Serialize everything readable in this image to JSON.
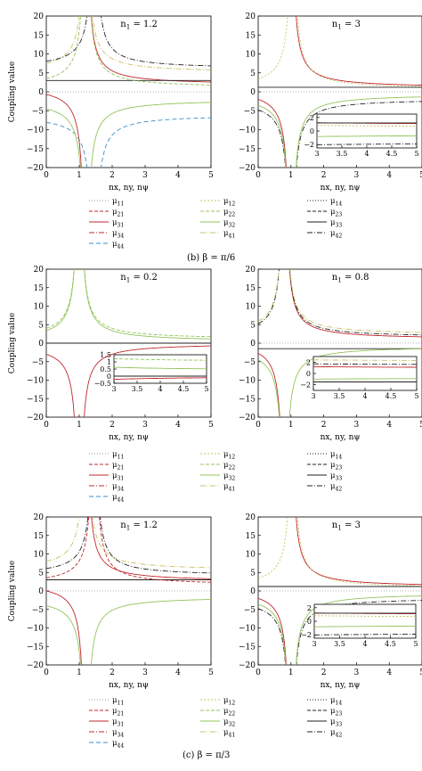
{
  "chart_data": [
    {
      "type": "line",
      "panel": "top-left",
      "title": "n1 = 1.2",
      "xlabel": "nx, ny, nψ",
      "ylabel": "Coupling value",
      "xlim": [
        0,
        5
      ],
      "ylim": [
        -20,
        20
      ],
      "xticks": [
        "0",
        "1",
        "2",
        "3",
        "4",
        "5"
      ],
      "yticks": [
        "20",
        "15",
        "10",
        "5",
        "0",
        "−5",
        "−10",
        "−15",
        "−20"
      ],
      "series": [
        {
          "name": "μ31",
          "asymptote": 1.2,
          "mode": "both",
          "tail": 1.8,
          "color": "#c0282d",
          "dash": ""
        },
        {
          "name": "μ41",
          "asymptote": 1.2,
          "mode": "pos",
          "tail": 5.0,
          "color": "#c8c064",
          "dash": "6 2 1 2"
        },
        {
          "name": "μ42",
          "asymptote": 1.45,
          "mode": "pos",
          "tail": 6.0,
          "color": "#222222",
          "dash": "6 2 1 2"
        },
        {
          "name": "μ44",
          "asymptote": 1.45,
          "mode": "neg",
          "tail": -6.0,
          "color": "#3b8ec8",
          "dash": "5 3"
        },
        {
          "name": "μ32",
          "asymptote": 1.2,
          "mode": "neg",
          "tail": -2.0,
          "color": "#93c45a",
          "dash": ""
        },
        {
          "name": "μ33",
          "asymptote": null,
          "mode": "flat",
          "tail": 3.0,
          "color": "#222222",
          "dash": ""
        },
        {
          "name": "μ22",
          "asymptote": 1.2,
          "mode": "pos",
          "tail": 1.0,
          "color": "#93c45a",
          "dash": "4 2"
        }
      ]
    },
    {
      "type": "line",
      "panel": "top-right",
      "title": "n1 = 3",
      "xlabel": "nx, ny, nψ",
      "ylabel": "",
      "xlim": [
        0,
        5
      ],
      "ylim": [
        -20,
        20
      ],
      "xticks": [
        "0",
        "1",
        "2",
        "3",
        "4",
        "5"
      ],
      "yticks": [
        "20",
        "15",
        "10",
        "5",
        "0",
        "−5",
        "−10",
        "−15",
        "−20"
      ],
      "inset": {
        "xlim": [
          3,
          5
        ],
        "ylim": [
          -2.5,
          2.5
        ],
        "xticks": [
          "3",
          "3.5",
          "4",
          "4.5",
          "5"
        ],
        "yticks": [
          "2",
          "0",
          "−2"
        ]
      },
      "series": [
        {
          "name": "μ31",
          "asymptote": 1.0,
          "mode": "both",
          "tail": 1.0,
          "color": "#c0282d",
          "dash": ""
        },
        {
          "name": "μ33",
          "asymptote": null,
          "mode": "flat",
          "tail": 1.2,
          "color": "#222222",
          "dash": ""
        },
        {
          "name": "μ42",
          "asymptote": 1.0,
          "mode": "neg",
          "tail": -1.8,
          "color": "#222222",
          "dash": "6 2 1 2"
        },
        {
          "name": "μ32",
          "asymptote": 1.0,
          "mode": "neg",
          "tail": -0.6,
          "color": "#93c45a",
          "dash": ""
        },
        {
          "name": "μ12",
          "asymptote": 1.05,
          "mode": "pos",
          "tail": 0.6,
          "color": "#c8c064",
          "dash": "2 2"
        }
      ]
    },
    {
      "type": "line",
      "panel": "middle-left",
      "title": "n1 = 0.2",
      "xlabel": "nx, ny, nψ",
      "ylabel": "Coupling value",
      "xlim": [
        0,
        5
      ],
      "ylim": [
        -20,
        20
      ],
      "xticks": [
        "0",
        "1",
        "2",
        "3",
        "4",
        "5"
      ],
      "yticks": [
        "20",
        "15",
        "10",
        "5",
        "0",
        "−5",
        "−10",
        "−15",
        "−20"
      ],
      "inset": {
        "xlim": [
          3,
          5
        ],
        "ylim": [
          -0.5,
          1.5
        ],
        "xticks": [
          "3",
          "3.5",
          "4",
          "4.5",
          "5"
        ],
        "yticks": [
          "1.5",
          "1",
          "0.5",
          "0",
          "−0.5"
        ]
      },
      "series": [
        {
          "name": "μ22",
          "asymptote": 1.0,
          "mode": "pos",
          "tail": 1.0,
          "color": "#93c45a",
          "dash": "4 2"
        },
        {
          "name": "μ32",
          "asymptote": 1.0,
          "mode": "pos",
          "tail": 0.4,
          "color": "#93c45a",
          "dash": ""
        },
        {
          "name": "μ31",
          "asymptote": 1.0,
          "mode": "neg",
          "tail": 0.0,
          "color": "#c0282d",
          "dash": ""
        },
        {
          "name": "μ33",
          "asymptote": null,
          "mode": "flat",
          "tail": 0.0,
          "color": "#222222",
          "dash": ""
        }
      ]
    },
    {
      "type": "line",
      "panel": "middle-right",
      "title": "n1 = 0.8",
      "xlabel": "nx, ny, nψ",
      "ylabel": "",
      "xlim": [
        0,
        5
      ],
      "ylim": [
        -20,
        20
      ],
      "xticks": [
        "0",
        "1",
        "2",
        "3",
        "4",
        "5"
      ],
      "yticks": [
        "20",
        "15",
        "10",
        "5",
        "0",
        "−5",
        "−10",
        "−15",
        "−20"
      ],
      "inset": {
        "xlim": [
          3,
          5
        ],
        "ylim": [
          -3,
          3
        ],
        "xticks": [
          "3",
          "3.5",
          "4",
          "4.5",
          "5"
        ],
        "yticks": [
          "2",
          "0",
          "−2"
        ]
      },
      "series": [
        {
          "name": "μ31",
          "asymptote": 0.8,
          "mode": "both",
          "tail": 1.0,
          "color": "#c0282d",
          "dash": ""
        },
        {
          "name": "μ33",
          "asymptote": null,
          "mode": "flat",
          "tail": -1.5,
          "color": "#222222",
          "dash": ""
        },
        {
          "name": "μ42",
          "asymptote": 0.8,
          "mode": "pos",
          "tail": 1.5,
          "color": "#222222",
          "dash": "6 2 1 2"
        },
        {
          "name": "μ41",
          "asymptote": 0.8,
          "mode": "pos",
          "tail": 2.2,
          "color": "#c8c064",
          "dash": "6 2 1 2"
        },
        {
          "name": "μ32",
          "asymptote": 0.8,
          "mode": "neg",
          "tail": -0.8,
          "color": "#93c45a",
          "dash": ""
        }
      ]
    },
    {
      "type": "line",
      "panel": "bottom-left",
      "title": "n1 = 1.2",
      "xlabel": "nx, ny, nψ",
      "ylabel": "Coupling value",
      "xlim": [
        0,
        5
      ],
      "ylim": [
        -20,
        20
      ],
      "xticks": [
        "0",
        "1",
        "2",
        "3",
        "4",
        "5"
      ],
      "yticks": [
        "20",
        "15",
        "10",
        "5",
        "0",
        "−5",
        "−10",
        "−15",
        "−20"
      ],
      "series": [
        {
          "name": "μ31",
          "asymptote": 1.2,
          "mode": "both",
          "tail": 2.5,
          "color": "#c0282d",
          "dash": ""
        },
        {
          "name": "μ41",
          "asymptote": 1.2,
          "mode": "pos",
          "tail": 5.5,
          "color": "#c8c064",
          "dash": "6 2 1 2"
        },
        {
          "name": "μ42",
          "asymptote": 1.45,
          "mode": "pos",
          "tail": 4.0,
          "color": "#222222",
          "dash": "6 2 1 2"
        },
        {
          "name": "μ32",
          "asymptote": 1.2,
          "mode": "neg",
          "tail": -1.5,
          "color": "#93c45a",
          "dash": ""
        },
        {
          "name": "μ33",
          "asymptote": null,
          "mode": "flat",
          "tail": 3.0,
          "color": "#222222",
          "dash": ""
        },
        {
          "name": "μ21",
          "asymptote": 1.45,
          "mode": "pos",
          "tail": 1.5,
          "color": "#c0282d",
          "dash": "4 2"
        }
      ]
    },
    {
      "type": "line",
      "panel": "bottom-right",
      "title": "n1 = 3",
      "xlabel": "nx, ny, nψ",
      "ylabel": "",
      "xlim": [
        0,
        5
      ],
      "ylim": [
        -20,
        20
      ],
      "xticks": [
        "0",
        "1",
        "2",
        "3",
        "4",
        "5"
      ],
      "yticks": [
        "20",
        "15",
        "10",
        "5",
        "0",
        "−5",
        "−10",
        "−15",
        "−20"
      ],
      "inset": {
        "xlim": [
          3,
          5
        ],
        "ylim": [
          -2.5,
          2.5
        ],
        "xticks": [
          "3",
          "3.5",
          "4",
          "4.5",
          "5"
        ],
        "yticks": [
          "2",
          "0",
          "−2"
        ]
      },
      "series": [
        {
          "name": "μ31",
          "asymptote": 1.0,
          "mode": "both",
          "tail": 1.0,
          "color": "#c0282d",
          "dash": ""
        },
        {
          "name": "μ33",
          "asymptote": null,
          "mode": "flat",
          "tail": 1.2,
          "color": "#222222",
          "dash": ""
        },
        {
          "name": "μ42",
          "asymptote": 1.0,
          "mode": "neg",
          "tail": -1.8,
          "color": "#222222",
          "dash": "6 2 1 2"
        },
        {
          "name": "μ32",
          "asymptote": 1.0,
          "mode": "neg",
          "tail": -0.6,
          "color": "#93c45a",
          "dash": ""
        },
        {
          "name": "μ12",
          "asymptote": 1.05,
          "mode": "pos",
          "tail": 0.6,
          "color": "#c8c064",
          "dash": "2 2"
        }
      ]
    }
  ],
  "legend": {
    "items": [
      {
        "name": "μ11",
        "color": "#999999",
        "dash": "1 2"
      },
      {
        "name": "μ12",
        "color": "#c8c064",
        "dash": "2 2"
      },
      {
        "name": "μ14",
        "color": "#222222",
        "dash": "1 2"
      },
      {
        "name": "μ21",
        "color": "#c0282d",
        "dash": "4 2"
      },
      {
        "name": "μ22",
        "color": "#93c45a",
        "dash": "4 2"
      },
      {
        "name": "μ23",
        "color": "#222222",
        "dash": "4 2"
      },
      {
        "name": "μ31",
        "color": "#c0282d",
        "dash": ""
      },
      {
        "name": "μ32",
        "color": "#93c45a",
        "dash": ""
      },
      {
        "name": "μ33",
        "color": "#222222",
        "dash": ""
      },
      {
        "name": "μ34",
        "color": "#c0282d",
        "dash": "6 2 1 2"
      },
      {
        "name": "μ41",
        "color": "#c8c064",
        "dash": "6 2 1 2"
      },
      {
        "name": "μ42",
        "color": "#222222",
        "dash": "6 2 1 2"
      },
      {
        "name": "μ44",
        "color": "#3b8ec8",
        "dash": "5 3"
      }
    ]
  },
  "captions": [
    "(b) β = π/6",
    "(c) β = π/3"
  ]
}
